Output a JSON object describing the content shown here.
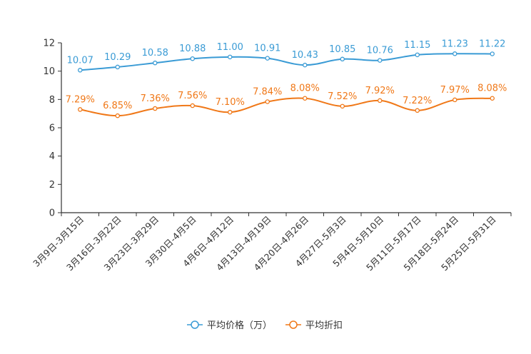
{
  "chart_data": {
    "type": "line",
    "title": "",
    "xlabel": "",
    "ylabel": "",
    "ylim": [
      0,
      12
    ],
    "yticks": [
      0,
      2,
      4,
      6,
      8,
      10,
      12
    ],
    "grid": false,
    "legend_position": "bottom-center",
    "categories": [
      "3月9日-3月15日",
      "3月16日-3月22日",
      "3月23日-3月29日",
      "3月30日-4月5日",
      "4月6日-4月12日",
      "4月13日-4月19日",
      "4月20日-4月26日",
      "4月27日-5月3日",
      "5月4日-5月10日",
      "5月11日-5月17日",
      "5月18日-5月24日",
      "5月25日-5月31日"
    ],
    "series": [
      {
        "name": "平均价格（万）",
        "color": "#3a9bd5",
        "values": [
          10.07,
          10.29,
          10.58,
          10.88,
          11.0,
          10.91,
          10.43,
          10.85,
          10.76,
          11.15,
          11.23,
          11.22
        ],
        "labels": [
          "10.07",
          "10.29",
          "10.58",
          "10.88",
          "11.00",
          "10.91",
          "10.43",
          "10.85",
          "10.76",
          "11.15",
          "11.23",
          "11.22"
        ]
      },
      {
        "name": "平均折扣",
        "color": "#f07818",
        "values": [
          7.29,
          6.85,
          7.36,
          7.56,
          7.1,
          7.84,
          8.08,
          7.52,
          7.92,
          7.22,
          7.97,
          8.08
        ],
        "labels": [
          "7.29%",
          "6.85%",
          "7.36%",
          "7.56%",
          "7.10%",
          "7.84%",
          "8.08%",
          "7.52%",
          "7.92%",
          "7.22%",
          "7.97%",
          "8.08%"
        ]
      }
    ]
  }
}
